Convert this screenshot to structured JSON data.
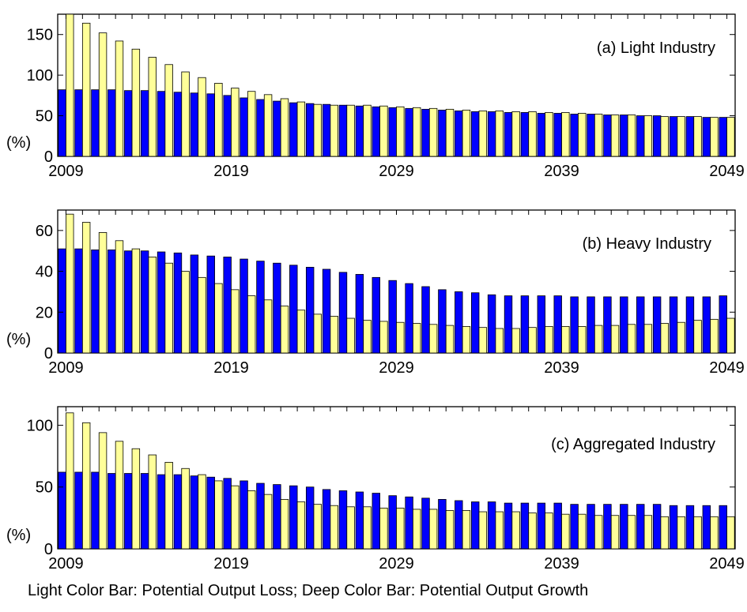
{
  "caption": "Light Color Bar: Potential Output Loss; Deep Color Bar: Potential Output Growth",
  "colors": {
    "light_bar": "#FFFF99",
    "deep_bar": "#0000FF",
    "axis": "#000000"
  },
  "chart_data": [
    {
      "type": "bar",
      "title": "(a) Light Industry",
      "ylabel": "(%)",
      "xlim": [
        2009,
        2049
      ],
      "ylim": [
        0,
        175
      ],
      "yticks": [
        0,
        50,
        100,
        150
      ],
      "xticks": [
        2009,
        2019,
        2029,
        2039,
        2049
      ],
      "grid": false,
      "series": [
        {
          "name": "Potential Output Growth",
          "color": "#0000FF",
          "values": [
            82,
            82,
            82,
            82,
            81,
            81,
            80,
            79,
            78,
            77,
            75,
            72,
            70,
            68,
            66,
            65,
            64,
            63,
            62,
            61,
            60,
            59,
            58,
            57,
            56,
            55,
            55,
            54,
            54,
            53,
            53,
            52,
            52,
            51,
            51,
            50,
            50,
            49,
            49,
            48,
            48
          ]
        },
        {
          "name": "Potential Output Loss",
          "color": "#FFFF99",
          "values": [
            175,
            164,
            152,
            142,
            132,
            122,
            113,
            104,
            97,
            90,
            84,
            80,
            76,
            71,
            67,
            64,
            63,
            63,
            63,
            62,
            61,
            60,
            59,
            58,
            57,
            56,
            56,
            55,
            55,
            54,
            54,
            53,
            52,
            51,
            51,
            50,
            49,
            49,
            49,
            48,
            48
          ]
        }
      ]
    },
    {
      "type": "bar",
      "title": "(b) Heavy Industry",
      "ylabel": "(%)",
      "xlim": [
        2009,
        2049
      ],
      "ylim": [
        0,
        70
      ],
      "yticks": [
        0,
        20,
        40,
        60
      ],
      "xticks": [
        2009,
        2019,
        2029,
        2039,
        2049
      ],
      "grid": false,
      "series": [
        {
          "name": "Potential Output Growth",
          "color": "#0000FF",
          "values": [
            51,
            51,
            50.5,
            50.5,
            50,
            50,
            49.5,
            49,
            48,
            47.5,
            47,
            46,
            45,
            44,
            43,
            42,
            41,
            39.5,
            38.5,
            37,
            35.5,
            34,
            32.5,
            31,
            30,
            29.5,
            28.5,
            28,
            28,
            28,
            28,
            27.5,
            27.5,
            27.5,
            27.5,
            27.5,
            27.5,
            27.5,
            27.5,
            27.5,
            28
          ]
        },
        {
          "name": "Potential Output Loss",
          "color": "#FFFF99",
          "values": [
            68,
            64,
            59,
            55,
            51,
            47,
            44,
            40,
            37,
            34,
            31,
            28,
            26,
            23,
            21,
            19,
            18,
            17,
            16,
            15.5,
            15,
            14.5,
            14,
            13.5,
            13,
            12.5,
            12,
            12,
            12.5,
            13,
            13,
            13,
            13.5,
            13.5,
            14,
            14,
            14.5,
            15,
            16,
            16.5,
            17
          ]
        }
      ]
    },
    {
      "type": "bar",
      "title": "(c) Aggregated Industry",
      "ylabel": "(%)",
      "xlim": [
        2009,
        2049
      ],
      "ylim": [
        0,
        115
      ],
      "yticks": [
        0,
        50,
        100
      ],
      "xticks": [
        2009,
        2019,
        2029,
        2039,
        2049
      ],
      "grid": false,
      "series": [
        {
          "name": "Potential Output Growth",
          "color": "#0000FF",
          "values": [
            62,
            62,
            62,
            61,
            61,
            61,
            60,
            60,
            59,
            58,
            57,
            55,
            53,
            52,
            51,
            50,
            48,
            47,
            46,
            45,
            43,
            42,
            41,
            40,
            39,
            38,
            38,
            37,
            37,
            37,
            37,
            36,
            36,
            36,
            36,
            36,
            36,
            35,
            35,
            35,
            35
          ]
        },
        {
          "name": "Potential Output Loss",
          "color": "#FFFF99",
          "values": [
            110,
            102,
            94,
            87,
            81,
            76,
            70,
            65,
            60,
            55,
            51,
            47,
            44,
            40,
            38,
            36,
            35,
            34,
            34,
            33,
            33,
            32,
            32,
            31,
            31,
            30,
            30,
            30,
            29,
            29,
            28,
            28,
            27,
            27,
            27,
            27,
            26,
            26,
            26,
            26,
            26
          ]
        }
      ]
    }
  ]
}
